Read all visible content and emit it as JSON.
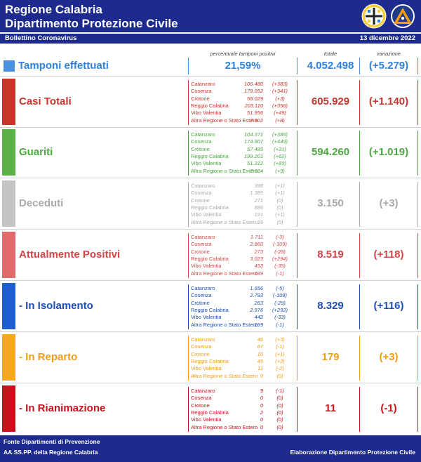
{
  "header": {
    "title_line1": "Regione Calabria",
    "title_line2": "Dipartimento Protezione Civile",
    "subtitle": "Bollettino Coronavirus",
    "date": "13 dicembre 2022"
  },
  "columns": {
    "perc": "percentuale tamponi positivi",
    "total": "totale",
    "variation": "variazione"
  },
  "tamponi": {
    "label": "Tamponi effettuati",
    "percent": "21,59%",
    "total": "4.052.498",
    "variation": "(+5.279)",
    "color": "#2f80d8"
  },
  "rows": [
    {
      "label": "Casi Totali",
      "total": "605.929",
      "variation": "(+1.140)",
      "color": "#c8352a",
      "bar_color": "#c8352a",
      "provinces": [
        {
          "name": "Catanzaro",
          "value": "106.480",
          "delta": "(+383)"
        },
        {
          "name": "Cosenza",
          "value": "179.052",
          "delta": "(+341)"
        },
        {
          "name": "Crotone",
          "value": "58.029",
          "delta": "(+3)"
        },
        {
          "name": "Reggio Calabria",
          "value": "203.110",
          "delta": "(+356)"
        },
        {
          "name": "Vibo Valentia",
          "value": "51.956",
          "delta": "(+49)"
        },
        {
          "name": "Altra Regione o Stato Estero",
          "value": "7.302",
          "delta": "(+8)"
        }
      ]
    },
    {
      "label": "Guariti",
      "total": "594.260",
      "variation": "(+1.019)",
      "color": "#4aa83e",
      "bar_color": "#5bb04a",
      "provinces": [
        {
          "name": "Catanzaro",
          "value": "104.371",
          "delta": "(+385)"
        },
        {
          "name": "Cosenza",
          "value": "174.807",
          "delta": "(+449)"
        },
        {
          "name": "Crotone",
          "value": "57.485",
          "delta": "(+31)"
        },
        {
          "name": "Reggio Calabria",
          "value": "199.201",
          "delta": "(+62)"
        },
        {
          "name": "Vibo Valentia",
          "value": "51.312",
          "delta": "(+83)"
        },
        {
          "name": "Altra Regione o Stato Estero",
          "value": "7.084",
          "delta": "(+9)"
        }
      ]
    },
    {
      "label": "Deceduti",
      "total": "3.150",
      "variation": "(+3)",
      "color": "#a9a9a9",
      "bar_color": "#c4c4c4",
      "provinces": [
        {
          "name": "Catanzaro",
          "value": "398",
          "delta": "(+1)"
        },
        {
          "name": "Cosenza",
          "value": "1.385",
          "delta": "(+1)"
        },
        {
          "name": "Crotone",
          "value": "271",
          "delta": "(0)"
        },
        {
          "name": "Reggio Calabria",
          "value": "886",
          "delta": "(0)"
        },
        {
          "name": "Vibo Valentia",
          "value": "191",
          "delta": "(+1)"
        },
        {
          "name": "Altra Regione o Stato Estero",
          "value": "19",
          "delta": "(0)"
        }
      ]
    },
    {
      "label": "Attualmente Positivi",
      "total": "8.519",
      "variation": "(+118)",
      "color": "#d64545",
      "bar_color": "#e36a6a",
      "provinces": [
        {
          "name": "Catanzaro",
          "value": "1.711",
          "delta": "(-3)"
        },
        {
          "name": "Cosenza",
          "value": "2.860",
          "delta": "(-109)"
        },
        {
          "name": "Crotone",
          "value": "273",
          "delta": "(-28)"
        },
        {
          "name": "Reggio Calabria",
          "value": "3.023",
          "delta": "(+294)"
        },
        {
          "name": "Vibo Valentia",
          "value": "453",
          "delta": "(-35)"
        },
        {
          "name": "Altra Regione o Stato Estero",
          "value": "199",
          "delta": "(-1)"
        }
      ]
    },
    {
      "label": "- In Isolamento",
      "total": "8.329",
      "variation": "(+116)",
      "color": "#1c4fb8",
      "bar_color": "#1f5ed1",
      "provinces": [
        {
          "name": "Catanzaro",
          "value": "1.656",
          "delta": "(-5)"
        },
        {
          "name": "Cosenza",
          "value": "2.793",
          "delta": "(-108)"
        },
        {
          "name": "Crotone",
          "value": "263",
          "delta": "(-29)"
        },
        {
          "name": "Reggio Calabria",
          "value": "2.976",
          "delta": "(+292)"
        },
        {
          "name": "Vibo Valentia",
          "value": "442",
          "delta": "(-33)"
        },
        {
          "name": "Altra Regione o Stato Estero",
          "value": "199",
          "delta": "(-1)"
        }
      ]
    },
    {
      "label": "- In Reparto",
      "total": "179",
      "variation": "(+3)",
      "color": "#f39c12",
      "bar_color": "#f5a623",
      "provinces": [
        {
          "name": "Catanzaro",
          "value": "46",
          "delta": "(+3)"
        },
        {
          "name": "Cosenza",
          "value": "67",
          "delta": "(-1)"
        },
        {
          "name": "Crotone",
          "value": "10",
          "delta": "(+1)"
        },
        {
          "name": "Reggio Calabria",
          "value": "45",
          "delta": "(+2)"
        },
        {
          "name": "Vibo Valentia",
          "value": "11",
          "delta": "(-2)"
        },
        {
          "name": "Altra Regione o Stato Estero",
          "value": "0",
          "delta": "(0)"
        }
      ]
    },
    {
      "label": "- In Rianimazione",
      "total": "11",
      "variation": "(-1)",
      "color": "#c9111b",
      "bar_color": "#c9111b",
      "provinces": [
        {
          "name": "Catanzaro",
          "value": "9",
          "delta": "(-1)"
        },
        {
          "name": "Cosenza",
          "value": "0",
          "delta": "(0)"
        },
        {
          "name": "Crotone",
          "value": "0",
          "delta": "(0)"
        },
        {
          "name": "Reggio Calabria",
          "value": "2",
          "delta": "(0)"
        },
        {
          "name": "Vibo Valentia",
          "value": "0",
          "delta": "(0)"
        },
        {
          "name": "Altra Regione o Stato Estero",
          "value": "0",
          "delta": "(0)"
        }
      ]
    }
  ],
  "footer": {
    "line1": "Fonte Dipartimenti di Prevenzione",
    "line2": "AA.SS.PP.  della Regione Calabria",
    "right": "Elaborazione Dipartimento Protezione Civile"
  },
  "logos": {
    "region_logo": "regione-calabria-logo",
    "civil_protection_logo": "protezione-civile-logo"
  }
}
